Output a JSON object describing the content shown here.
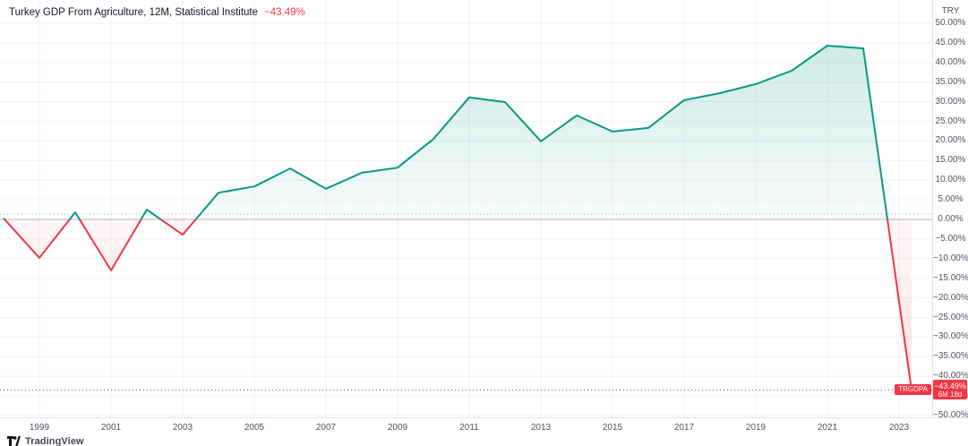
{
  "header": {
    "title": "Turkey GDP From Agriculture, 12M, Statistical Institute",
    "change": "−43.49%"
  },
  "price_axis": {
    "currency": "TRY",
    "ticks": [
      {
        "label": "50.00%",
        "value": 50
      },
      {
        "label": "45.00%",
        "value": 45
      },
      {
        "label": "40.00%",
        "value": 40
      },
      {
        "label": "35.00%",
        "value": 35
      },
      {
        "label": "30.00%",
        "value": 30
      },
      {
        "label": "25.00%",
        "value": 25
      },
      {
        "label": "20.00%",
        "value": 20
      },
      {
        "label": "15.00%",
        "value": 15
      },
      {
        "label": "10.00%",
        "value": 10
      },
      {
        "label": "5.00%",
        "value": 5
      },
      {
        "label": "0.00%",
        "value": 0
      },
      {
        "label": "−5.00%",
        "value": -5
      },
      {
        "label": "−10.00%",
        "value": -10
      },
      {
        "label": "−15.00%",
        "value": -15
      },
      {
        "label": "−20.00%",
        "value": -20
      },
      {
        "label": "−25.00%",
        "value": -25
      },
      {
        "label": "−30.00%",
        "value": -30
      },
      {
        "label": "−35.00%",
        "value": -35
      },
      {
        "label": "−40.00%",
        "value": -40
      },
      {
        "label": "−45.00%",
        "value": -45
      },
      {
        "label": "−50.00%",
        "value": -50
      }
    ],
    "badge": {
      "ticker": "TRGDPA",
      "value": "−43.49%",
      "countdown": "6M 18d"
    }
  },
  "time_axis": {
    "years": [
      "1999",
      "2001",
      "2003",
      "2005",
      "2007",
      "2009",
      "2011",
      "2013",
      "2015",
      "2017",
      "2019",
      "2021",
      "2023"
    ]
  },
  "chart_data": {
    "type": "area",
    "title": "Turkey GDP From Agriculture, 12M, Statistical Institute",
    "x": [
      1998,
      1999,
      2000,
      2001,
      2002,
      2003,
      2004,
      2005,
      2006,
      2007,
      2008,
      2009,
      2010,
      2011,
      2012,
      2013,
      2014,
      2015,
      2016,
      2017,
      2018,
      2019,
      2020,
      2021,
      2022,
      2023
    ],
    "values": [
      0.3,
      -9.8,
      1.8,
      -13.0,
      2.5,
      -3.9,
      6.8,
      8.4,
      13.0,
      7.8,
      11.9,
      13.2,
      20.5,
      31.1,
      29.9,
      19.9,
      26.5,
      22.4,
      23.3,
      30.4,
      32.2,
      34.5,
      37.9,
      44.3,
      43.6,
      -43.49
    ],
    "unit": "%",
    "xlabel": "",
    "ylabel": "TRY",
    "ylim": [
      -50,
      50
    ],
    "grid": true,
    "baseline": 0,
    "legend_position": "top-left",
    "colors": {
      "positive": "#089981",
      "negative": "#f23645",
      "grid": "rgba(42,46,57,0.06)",
      "zero_line": "rgba(120,123,134,0.55)",
      "current_line": "#f23645"
    },
    "current": {
      "value": -43.49,
      "label": "−43.49%"
    }
  },
  "attribution": {
    "logo_icon": "tradingview-logo",
    "text": "TradingView"
  }
}
